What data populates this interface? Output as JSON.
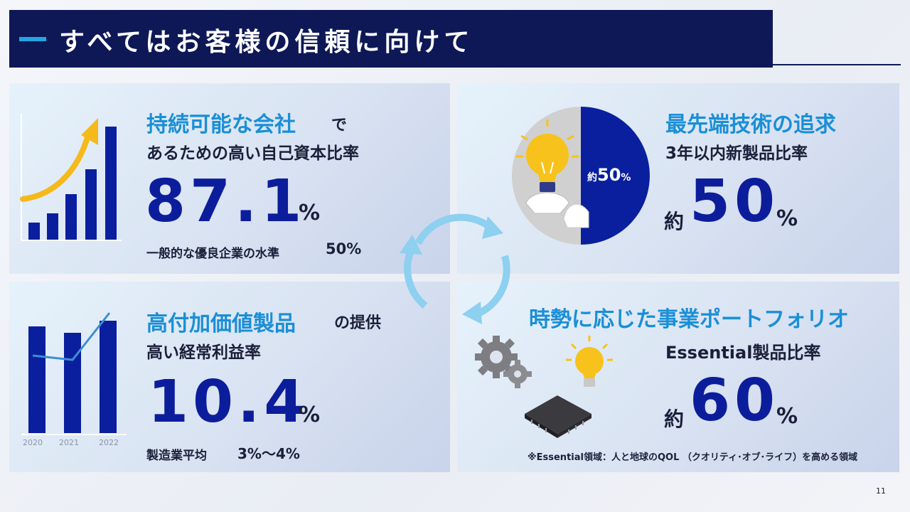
{
  "header": {
    "title": "すべてはお客様の信頼に向けて"
  },
  "panel1": {
    "title_highlight": "持続可能な会社",
    "title_suffix": "で",
    "title_line2": "あるための高い自己資本比率",
    "value": "87.1",
    "unit": "%",
    "benchmark_label": "一般的な優良企業の水準",
    "benchmark_value": "50%"
  },
  "panel2": {
    "title": "最先端技術の追求",
    "subtitle": "3年以内新製品比率",
    "pie_label_prefix": "約",
    "pie_label_value": "50",
    "pie_label_unit": "%",
    "value_prefix": "約",
    "value": "50",
    "unit": "%",
    "pie_fraction": 0.5
  },
  "panel3": {
    "title_highlight": "高付加価値製品",
    "title_suffix": "の提供",
    "title_line2": "高い経常利益率",
    "value": "10.4",
    "unit": "%",
    "benchmark_label": "製造業平均",
    "benchmark_value": "3%〜4%",
    "years": [
      "2020",
      "2021",
      "2022"
    ]
  },
  "panel4": {
    "title": "時勢に応じた事業ポートフォリオ",
    "subtitle": "Essential製品比率",
    "value_prefix": "約",
    "value": "60",
    "unit": "%",
    "footnote": "※Essential領域：人と地球のQOL （クオリティ･オブ･ライフ）を高める領域"
  },
  "page_number": "11",
  "colors": {
    "navy": "#0e1856",
    "accent_blue": "#0c1d9c",
    "cyan": "#1a8fd6",
    "arrow_cyan": "#8dd0ef",
    "bulb_yellow": "#f7c21b",
    "chart_blue": "#0a1f9e"
  }
}
